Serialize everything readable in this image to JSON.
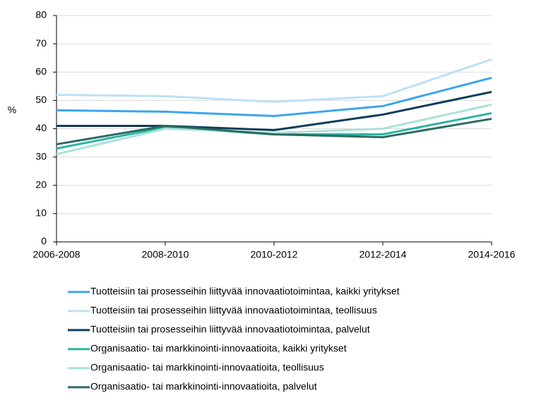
{
  "chart_data": {
    "type": "line",
    "y_label": "%",
    "categories": [
      "2006-2008",
      "2008-2010",
      "2010-2012",
      "2012-2014",
      "2014-2016"
    ],
    "ylim": [
      0,
      80
    ],
    "yticks": [
      0,
      10,
      20,
      30,
      40,
      50,
      60,
      70,
      80
    ],
    "grid": true,
    "series": [
      {
        "name": "Tuotteisiin tai prosesseihin liittyvää innovaatiotoimintaa, kaikki yritykset",
        "color": "#3aa6ee",
        "values": [
          46.5,
          46,
          44.5,
          48,
          58
        ]
      },
      {
        "name": "Tuotteisiin tai prosesseihin liittyvää innovaatiotoimintaa, teollisuus",
        "color": "#bde0f7",
        "values": [
          52,
          51.5,
          49.5,
          51.5,
          64.5
        ]
      },
      {
        "name": "Tuotteisiin tai prosesseihin liittyvää innovaatiotoimintaa, palvelut",
        "color": "#0e3b5c",
        "values": [
          41,
          41,
          39.5,
          45,
          53
        ]
      },
      {
        "name": "Organisaatio- tai markkinointi-innovaatioita, kaikki yritykset",
        "color": "#2ab3a6",
        "values": [
          33,
          40.5,
          38,
          38,
          45.5
        ]
      },
      {
        "name": "Organisaatio- tai markkinointi-innovaatioita, teollisuus",
        "color": "#abe2da",
        "values": [
          31,
          40,
          38.5,
          40,
          48.5
        ]
      },
      {
        "name": "Organisaatio- tai markkinointi-innovaatioita, palvelut",
        "color": "#2a6b5e",
        "values": [
          34.5,
          41,
          38,
          37,
          43.5
        ]
      }
    ]
  }
}
